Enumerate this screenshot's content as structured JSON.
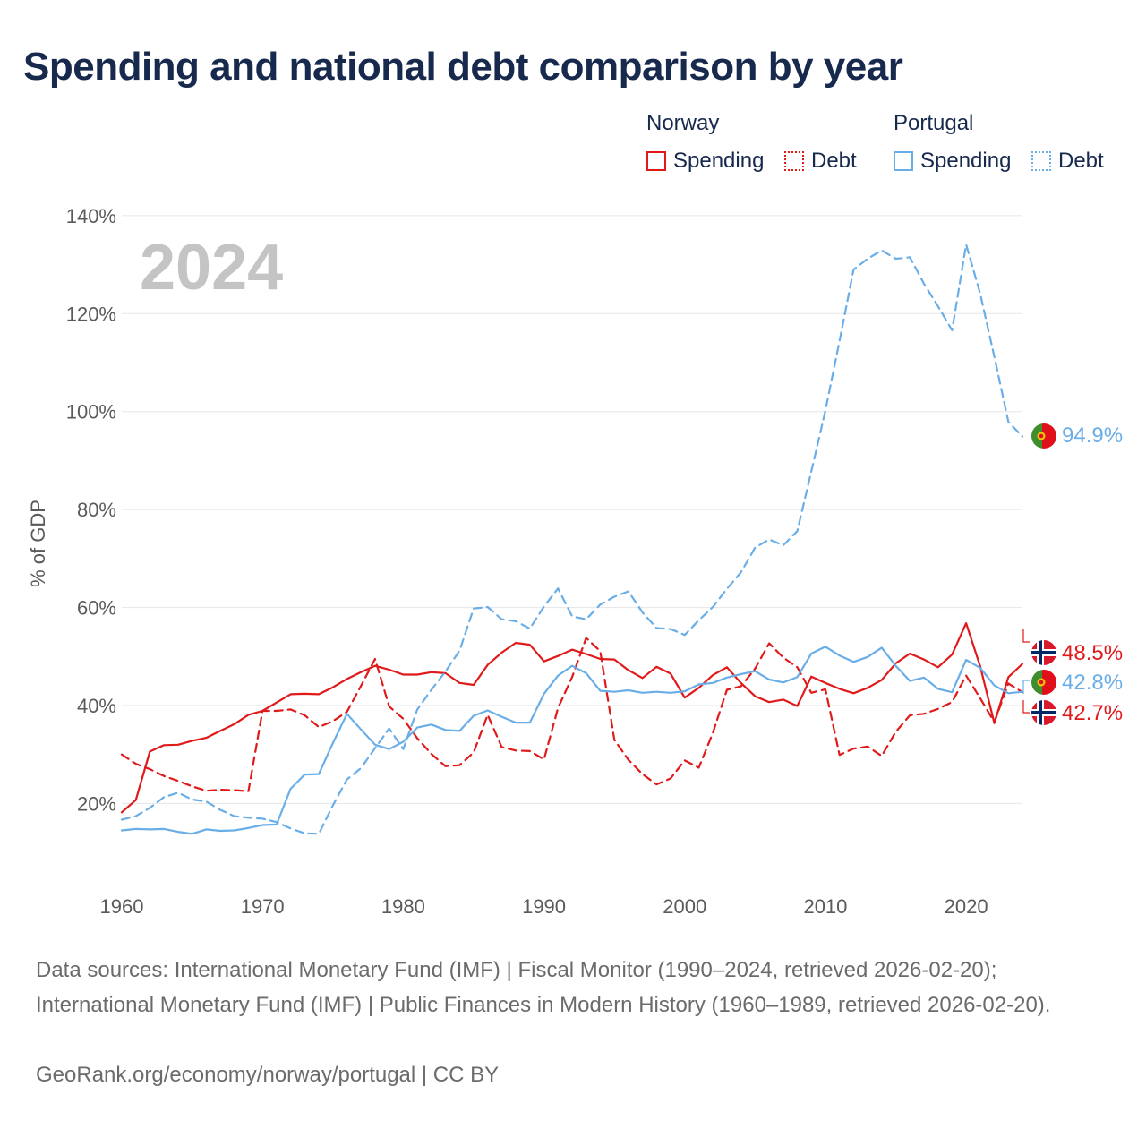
{
  "title": "Spending and national debt comparison by year",
  "legend": {
    "norway": {
      "label": "Norway",
      "spending": "Spending",
      "debt": "Debt"
    },
    "portugal": {
      "label": "Portugal",
      "spending": "Spending",
      "debt": "Debt"
    }
  },
  "colors": {
    "norway": "#e01a1a",
    "portugal": "#6aaee8"
  },
  "footer": {
    "sources": "Data sources: International Monetary Fund (IMF) | Fiscal Monitor (1990–2024, retrieved 2026-02-20); International Monetary Fund (IMF) | Public Finances in Modern History (1960–1989, retrieved 2026-02-20).",
    "credit": "GeoRank.org/economy/norway/portugal | CC BY"
  },
  "chart_data": {
    "type": "line",
    "year_label": "2024",
    "ylabel": "% of GDP",
    "xlim": [
      1960,
      2024
    ],
    "ylim": [
      6,
      144
    ],
    "x_ticks": [
      1960,
      1970,
      1980,
      1990,
      2000,
      2010,
      2020
    ],
    "y_ticks": [
      20,
      40,
      60,
      80,
      100,
      120,
      140
    ],
    "y_tick_labels": [
      "20%",
      "40%",
      "60%",
      "80%",
      "100%",
      "120%",
      "140%"
    ],
    "x": [
      1960,
      1961,
      1962,
      1963,
      1964,
      1965,
      1966,
      1967,
      1968,
      1969,
      1970,
      1971,
      1972,
      1973,
      1974,
      1975,
      1976,
      1977,
      1978,
      1979,
      1980,
      1981,
      1982,
      1983,
      1984,
      1985,
      1986,
      1987,
      1988,
      1989,
      1990,
      1991,
      1992,
      1993,
      1994,
      1995,
      1996,
      1997,
      1998,
      1999,
      2000,
      2001,
      2002,
      2003,
      2004,
      2005,
      2006,
      2007,
      2008,
      2009,
      2010,
      2011,
      2012,
      2013,
      2014,
      2015,
      2016,
      2017,
      2018,
      2019,
      2020,
      2021,
      2022,
      2023,
      2024
    ],
    "series": [
      {
        "name": "Norway Spending",
        "country": "norway",
        "dash": "solid",
        "end_label": "48.5%",
        "values": [
          18.2,
          20.7,
          30.6,
          31.9,
          32.0,
          32.8,
          33.4,
          34.8,
          36.2,
          38.1,
          38.9,
          40.6,
          42.3,
          42.4,
          42.3,
          43.7,
          45.4,
          46.8,
          48.1,
          47.3,
          46.3,
          46.3,
          46.8,
          46.6,
          44.6,
          44.2,
          48.3,
          50.8,
          52.8,
          52.4,
          49.0,
          50.1,
          51.4,
          50.5,
          49.5,
          49.4,
          47.2,
          45.6,
          47.9,
          46.5,
          41.6,
          43.6,
          46.2,
          47.8,
          44.6,
          41.9,
          40.7,
          41.2,
          39.9,
          45.9,
          44.6,
          43.4,
          42.5,
          43.6,
          45.2,
          48.6,
          50.6,
          49.4,
          47.8,
          50.4,
          56.8,
          48.0,
          36.4,
          45.8,
          48.5
        ]
      },
      {
        "name": "Norway Debt",
        "country": "norway",
        "dash": "dashed",
        "end_label": "42.7%",
        "values": [
          30.0,
          28.1,
          27.0,
          25.6,
          24.6,
          23.5,
          22.6,
          22.8,
          22.7,
          22.5,
          38.9,
          38.9,
          39.2,
          38.0,
          35.6,
          36.8,
          38.7,
          44.0,
          49.5,
          39.8,
          37.3,
          33.3,
          30.1,
          27.6,
          27.8,
          30.4,
          38.1,
          31.5,
          30.8,
          30.7,
          29.0,
          39.5,
          45.8,
          53.8,
          51.1,
          33.0,
          28.9,
          26.0,
          23.9,
          25.1,
          28.8,
          27.3,
          34.4,
          43.2,
          43.9,
          47.5,
          52.7,
          49.8,
          47.8,
          42.6,
          43.3,
          29.9,
          31.2,
          31.6,
          29.7,
          34.6,
          38.0,
          38.3,
          39.3,
          40.7,
          46.1,
          41.5,
          36.6,
          44.5,
          42.7
        ]
      },
      {
        "name": "Portugal Spending",
        "country": "portugal",
        "dash": "solid",
        "end_label": "42.8%",
        "values": [
          14.5,
          14.8,
          14.7,
          14.8,
          14.2,
          13.8,
          14.7,
          14.4,
          14.5,
          15.0,
          15.6,
          15.7,
          23.0,
          25.9,
          26.0,
          32.3,
          38.3,
          35.1,
          32.0,
          31.1,
          32.6,
          35.5,
          36.1,
          35.0,
          34.8,
          37.9,
          39.0,
          37.7,
          36.5,
          36.5,
          42.4,
          46.1,
          48.1,
          46.6,
          43.0,
          42.8,
          43.1,
          42.6,
          42.8,
          42.6,
          42.9,
          44.3,
          44.6,
          45.7,
          46.4,
          47.0,
          45.3,
          44.7,
          45.8,
          50.6,
          52.0,
          50.2,
          48.9,
          49.9,
          51.8,
          48.1,
          45.0,
          45.7,
          43.4,
          42.7,
          49.3,
          47.7,
          44.1,
          42.5,
          42.8
        ]
      },
      {
        "name": "Portugal Debt",
        "country": "portugal",
        "dash": "dashed",
        "end_label": "94.9%",
        "values": [
          16.7,
          17.4,
          19.1,
          21.3,
          22.2,
          20.8,
          20.4,
          18.7,
          17.4,
          17.1,
          16.9,
          16.2,
          14.9,
          13.9,
          13.8,
          19.6,
          24.9,
          27.2,
          31.3,
          35.3,
          31.1,
          39.2,
          43.2,
          46.9,
          51.2,
          59.8,
          60.1,
          57.6,
          57.2,
          55.7,
          60.2,
          63.9,
          58.2,
          57.6,
          60.6,
          62.2,
          63.3,
          59.0,
          55.8,
          55.6,
          54.4,
          57.4,
          60.1,
          63.8,
          67.2,
          72.2,
          73.9,
          72.7,
          75.6,
          87.8,
          100.2,
          114.4,
          129.0,
          131.2,
          132.9,
          131.2,
          131.5,
          126.1,
          121.5,
          116.6,
          134.1,
          124.1,
          111.2,
          97.9,
          94.9
        ]
      }
    ]
  }
}
